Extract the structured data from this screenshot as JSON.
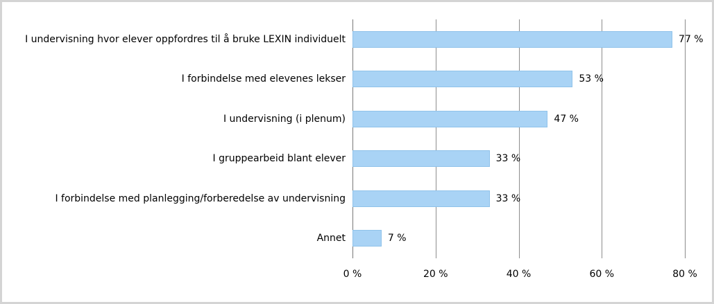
{
  "chart_data": {
    "type": "bar",
    "orientation": "horizontal",
    "categories": [
      "I undervisning hvor elever oppfordres til å bruke LEXIN individuelt",
      "I forbindelse med elevenes lekser",
      "I undervisning (i plenum)",
      "I gruppearbeid blant elever",
      "I forbindelse med planlegging/forberedelse av undervisning",
      "Annet"
    ],
    "values": [
      77,
      53,
      47,
      33,
      33,
      7
    ],
    "value_labels": [
      "77 %",
      "53 %",
      "47 %",
      "33 %",
      "33 %",
      "7 %"
    ],
    "color": "#a9d3f5",
    "xlim": [
      0,
      80
    ],
    "xticks": [
      {
        "value": 0,
        "label": "0 %"
      },
      {
        "value": 20,
        "label": "20 %"
      },
      {
        "value": 40,
        "label": "40 %"
      },
      {
        "value": 60,
        "label": "60 %"
      },
      {
        "value": 80,
        "label": "80 %"
      }
    ],
    "grid": true
  }
}
